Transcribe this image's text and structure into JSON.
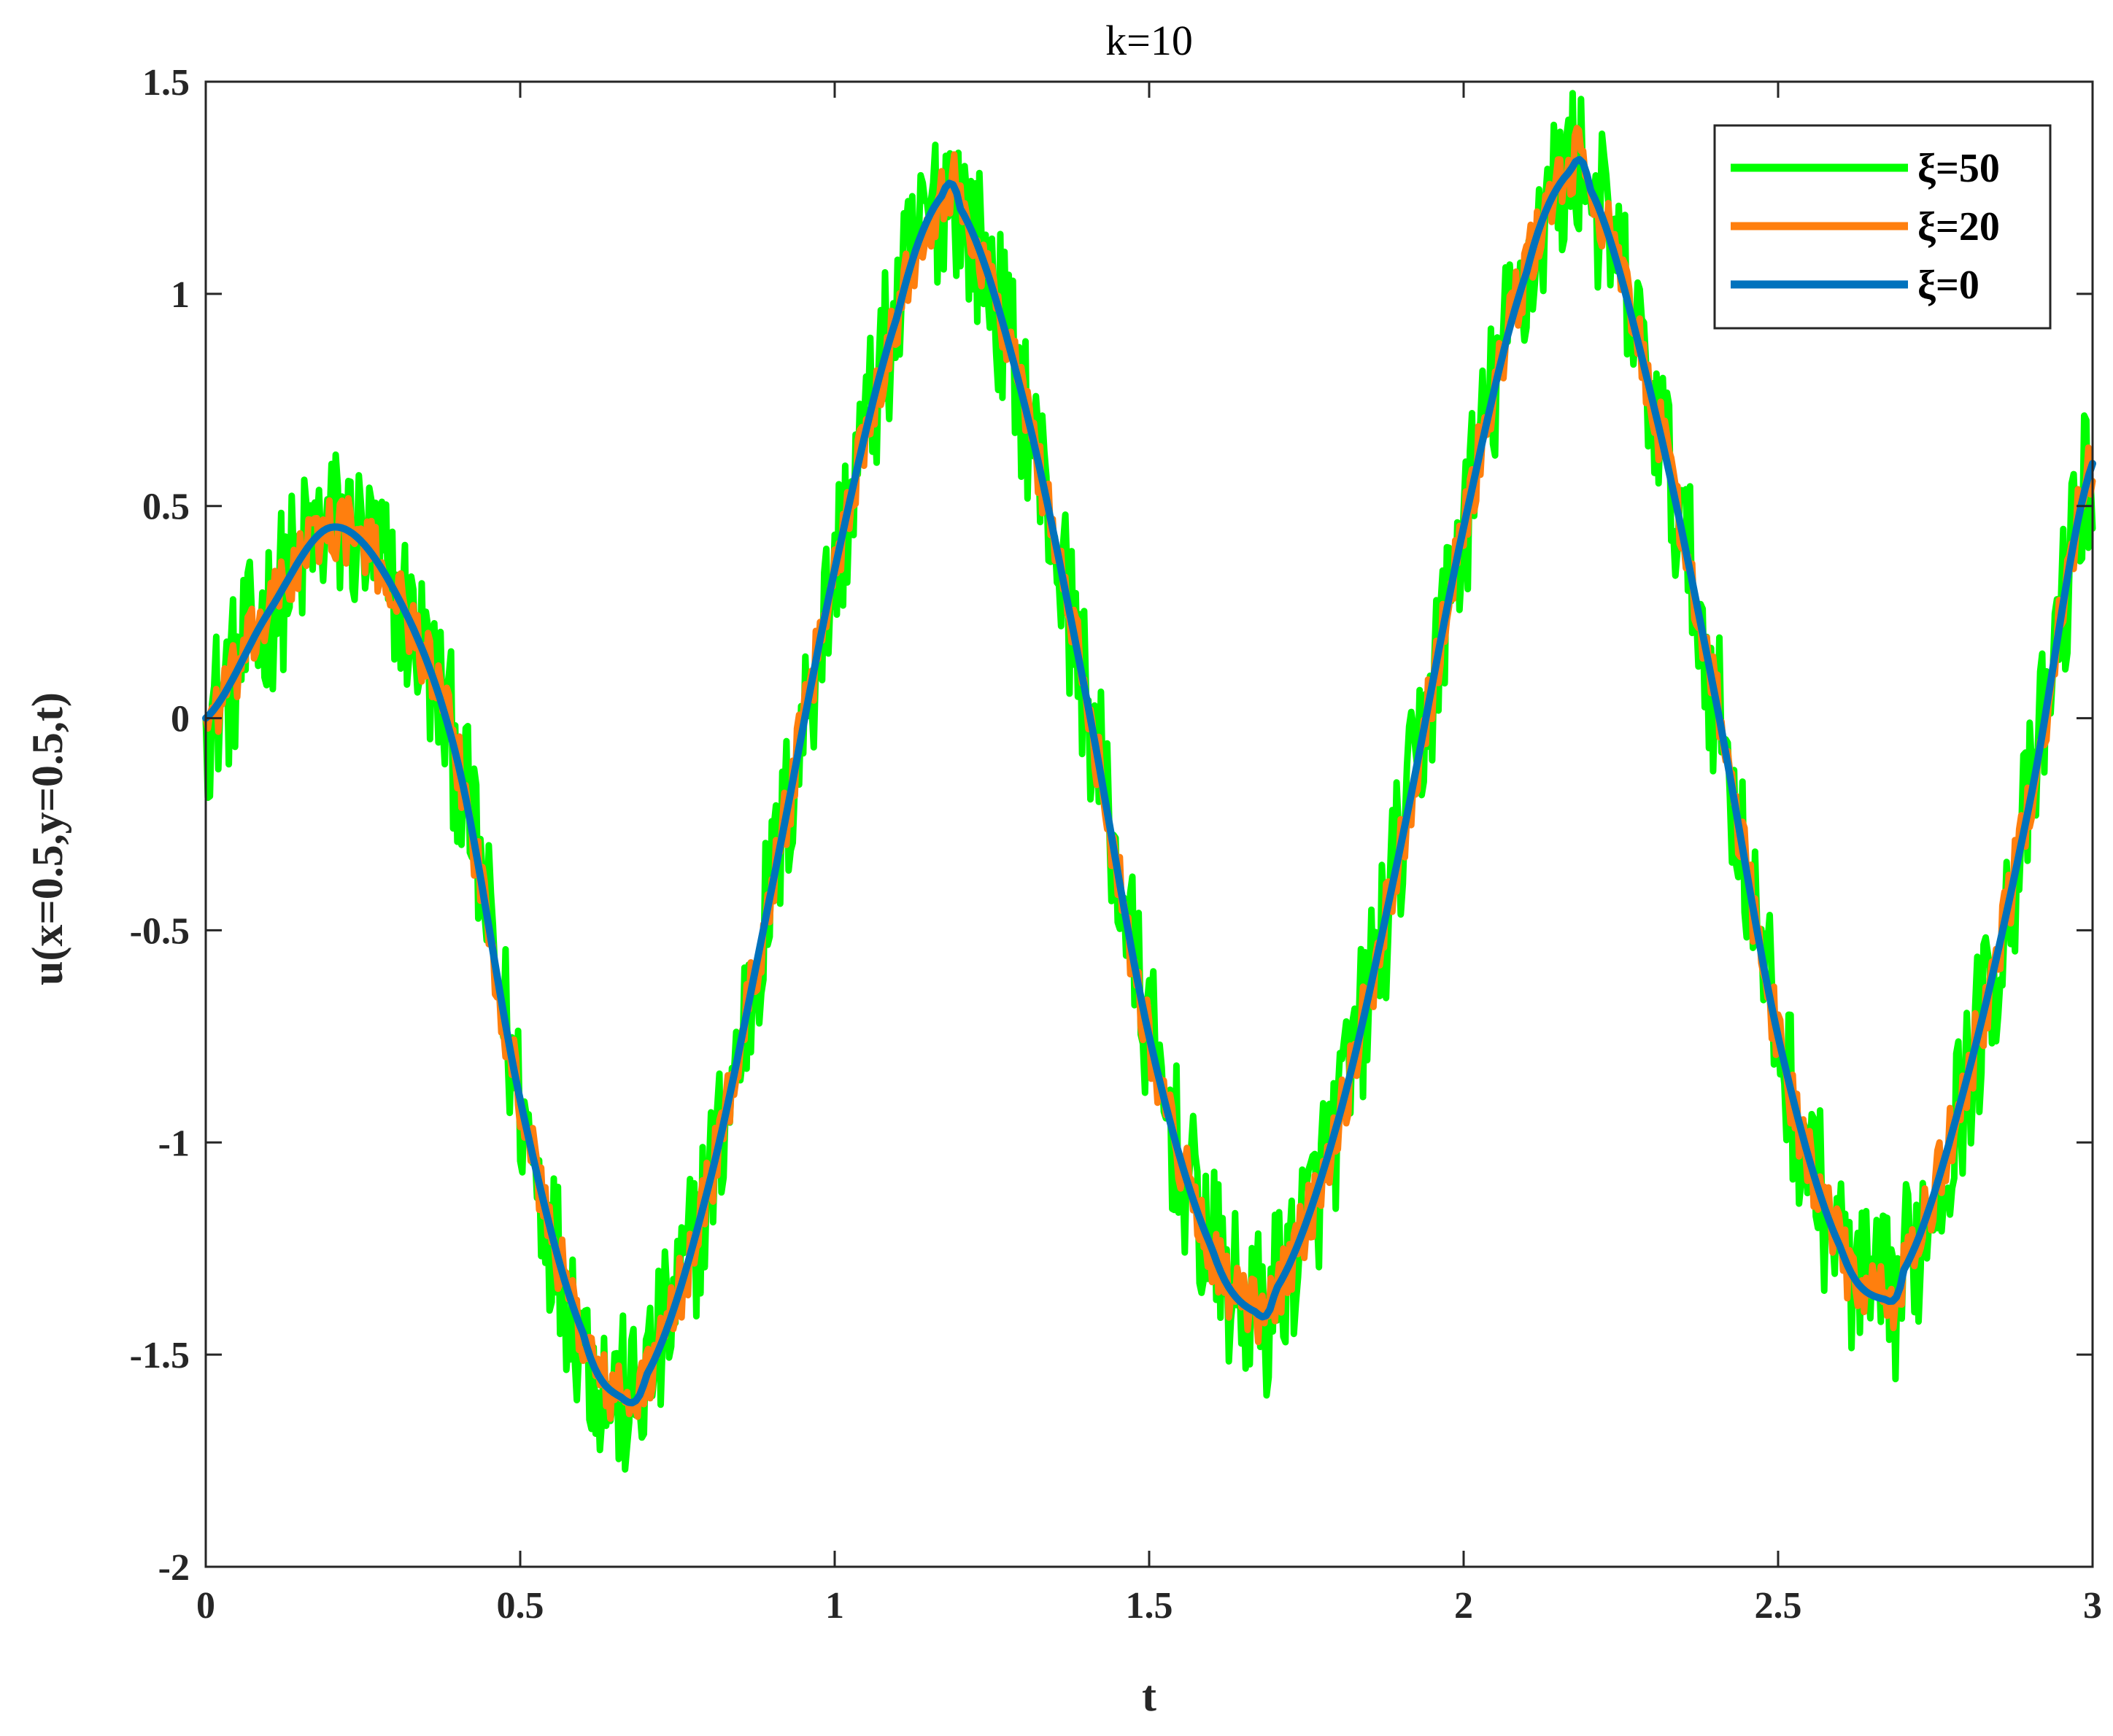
{
  "chart_data": {
    "type": "line",
    "title": "k=10",
    "xlabel": "t",
    "ylabel": "u(x=0.5,y=0.5,t)",
    "xlim": [
      0,
      3
    ],
    "ylim": [
      -2,
      1.5
    ],
    "xticks": [
      0,
      0.5,
      1,
      1.5,
      2,
      2.5,
      3
    ],
    "xtick_labels": [
      "0",
      "0.5",
      "1",
      "1.5",
      "2",
      "2.5",
      "3"
    ],
    "yticks": [
      -2,
      -1.5,
      -1,
      -0.5,
      0,
      0.5,
      1,
      1.5
    ],
    "ytick_labels": [
      "-2",
      "-1.5",
      "-1",
      "-0.5",
      "0",
      "0.5",
      "1",
      "1.5"
    ],
    "grid": false,
    "legend_position": "top-right",
    "series": [
      {
        "name": "ξ=50",
        "color": "#00FF00",
        "noise_amplitude": 0.2,
        "x": [
          0,
          0.1,
          0.2,
          0.3,
          0.4,
          0.5,
          0.6,
          0.66,
          0.7,
          0.8,
          0.9,
          1.0,
          1.1,
          1.17,
          1.2,
          1.3,
          1.4,
          1.5,
          1.6,
          1.67,
          1.7,
          1.8,
          1.9,
          2.0,
          2.1,
          2.17,
          2.2,
          2.3,
          2.4,
          2.5,
          2.6,
          2.67,
          2.7,
          2.8,
          2.9,
          3.0
        ],
        "y": [
          0,
          0.25,
          0.45,
          0.3,
          -0.1,
          -0.9,
          -1.45,
          -1.6,
          -1.55,
          -1.1,
          -0.4,
          0.35,
          0.95,
          1.23,
          1.2,
          0.75,
          0.05,
          -0.75,
          -1.25,
          -1.4,
          -1.35,
          -0.95,
          -0.3,
          0.45,
          1.05,
          1.29,
          1.25,
          0.75,
          0.05,
          -0.75,
          -1.25,
          -1.37,
          -1.3,
          -0.85,
          -0.2,
          0.6
        ]
      },
      {
        "name": "ξ=20",
        "color": "#FF7F0E",
        "noise_amplitude": 0.08,
        "x": [
          0,
          0.1,
          0.2,
          0.3,
          0.4,
          0.5,
          0.6,
          0.66,
          0.7,
          0.8,
          0.9,
          1.0,
          1.1,
          1.17,
          1.2,
          1.3,
          1.4,
          1.5,
          1.6,
          1.67,
          1.7,
          1.8,
          1.9,
          2.0,
          2.1,
          2.17,
          2.2,
          2.3,
          2.4,
          2.5,
          2.6,
          2.67,
          2.7,
          2.8,
          2.9,
          3.0
        ],
        "y": [
          0,
          0.25,
          0.45,
          0.3,
          -0.1,
          -0.9,
          -1.45,
          -1.6,
          -1.55,
          -1.1,
          -0.4,
          0.35,
          0.95,
          1.23,
          1.2,
          0.75,
          0.05,
          -0.75,
          -1.25,
          -1.4,
          -1.35,
          -0.95,
          -0.3,
          0.45,
          1.05,
          1.29,
          1.25,
          0.75,
          0.05,
          -0.75,
          -1.25,
          -1.37,
          -1.3,
          -0.85,
          -0.2,
          0.6
        ]
      },
      {
        "name": "ξ=0",
        "color": "#0072BD",
        "noise_amplitude": 0,
        "x": [
          0,
          0.1,
          0.2,
          0.3,
          0.4,
          0.5,
          0.6,
          0.66,
          0.7,
          0.8,
          0.9,
          1.0,
          1.1,
          1.17,
          1.2,
          1.3,
          1.4,
          1.5,
          1.6,
          1.67,
          1.7,
          1.8,
          1.9,
          2.0,
          2.1,
          2.17,
          2.2,
          2.3,
          2.4,
          2.5,
          2.6,
          2.67,
          2.7,
          2.8,
          2.9,
          3.0
        ],
        "y": [
          0,
          0.25,
          0.45,
          0.3,
          -0.1,
          -0.9,
          -1.45,
          -1.6,
          -1.55,
          -1.1,
          -0.4,
          0.35,
          0.95,
          1.23,
          1.2,
          0.75,
          0.05,
          -0.75,
          -1.25,
          -1.4,
          -1.35,
          -0.95,
          -0.3,
          0.45,
          1.05,
          1.29,
          1.25,
          0.75,
          0.05,
          -0.75,
          -1.25,
          -1.37,
          -1.3,
          -0.85,
          -0.2,
          0.6
        ]
      }
    ]
  }
}
